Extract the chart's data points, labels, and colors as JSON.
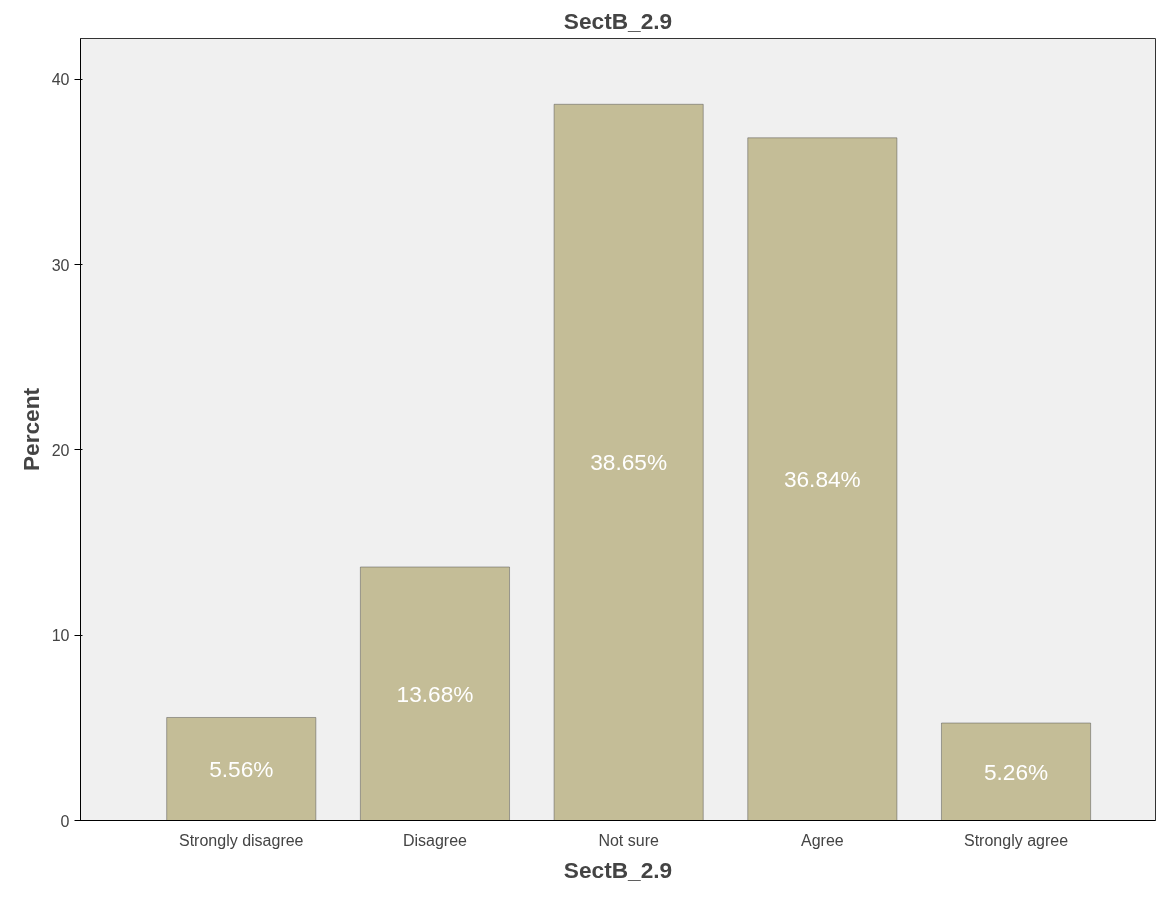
{
  "chart_data": {
    "type": "bar",
    "title": "SectB_2.9",
    "xlabel": "SectB_2.9",
    "ylabel": "Percent",
    "categories": [
      "Strongly disagree",
      "Disagree",
      "Not sure",
      "Agree",
      "Strongly agree"
    ],
    "values": [
      5.56,
      13.68,
      38.65,
      36.84,
      5.26
    ],
    "value_labels": [
      "5.56%",
      "13.68%",
      "38.65%",
      "36.84%",
      "5.26%"
    ],
    "color": "#c4bd97",
    "ylim": [
      0,
      42.2
    ],
    "yticks": [
      0,
      10,
      20,
      30,
      40
    ],
    "grid": false
  }
}
